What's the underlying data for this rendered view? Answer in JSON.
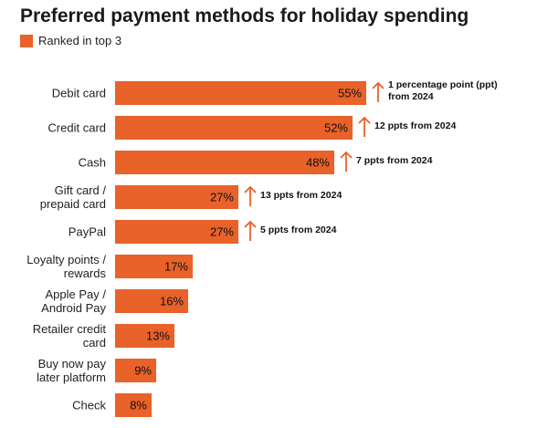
{
  "colors": {
    "accent": "#E8622A",
    "text": "#222222"
  },
  "chart_data": {
    "type": "bar",
    "orientation": "horizontal",
    "title": "Preferred payment methods for holiday spending",
    "legend": [
      "Ranked in top 3"
    ],
    "legend_position": "top-left",
    "xlim": [
      0,
      60
    ],
    "grid": false,
    "categories": [
      "Debit card",
      "Credit card",
      "Cash",
      "Gift card / prepaid card",
      "PayPal",
      "Loyalty points / rewards",
      "Apple Pay / Android Pay",
      "Retailer credit card",
      "Buy now pay later platform",
      "Check"
    ],
    "category_lines": [
      [
        "Debit card"
      ],
      [
        "Credit card"
      ],
      [
        "Cash"
      ],
      [
        "Gift card /",
        "prepaid card"
      ],
      [
        "PayPal"
      ],
      [
        "Loyalty points /",
        "rewards"
      ],
      [
        "Apple Pay /",
        "Android Pay"
      ],
      [
        "Retailer credit",
        "card"
      ],
      [
        "Buy now pay",
        "later platform"
      ],
      [
        "Check"
      ]
    ],
    "series": [
      {
        "name": "Ranked in top 3",
        "values": [
          55,
          52,
          48,
          27,
          27,
          17,
          16,
          13,
          9,
          8
        ]
      }
    ],
    "data_labels": [
      "55%",
      "52%",
      "48%",
      "27%",
      "27%",
      "17%",
      "16%",
      "13%",
      "9%",
      "8%"
    ],
    "annotations": [
      {
        "category": "Debit card",
        "lines": [
          "1 percentage point (ppt)",
          "from 2024"
        ],
        "direction": "up"
      },
      {
        "category": "Credit card",
        "lines": [
          "12 ppts from 2024"
        ],
        "direction": "up"
      },
      {
        "category": "Cash",
        "lines": [
          "7 ppts from 2024"
        ],
        "direction": "up"
      },
      {
        "category": "Gift card / prepaid card",
        "lines": [
          "13 ppts from 2024"
        ],
        "direction": "up"
      },
      {
        "category": "PayPal",
        "lines": [
          "5 ppts from 2024"
        ],
        "direction": "up"
      }
    ]
  }
}
